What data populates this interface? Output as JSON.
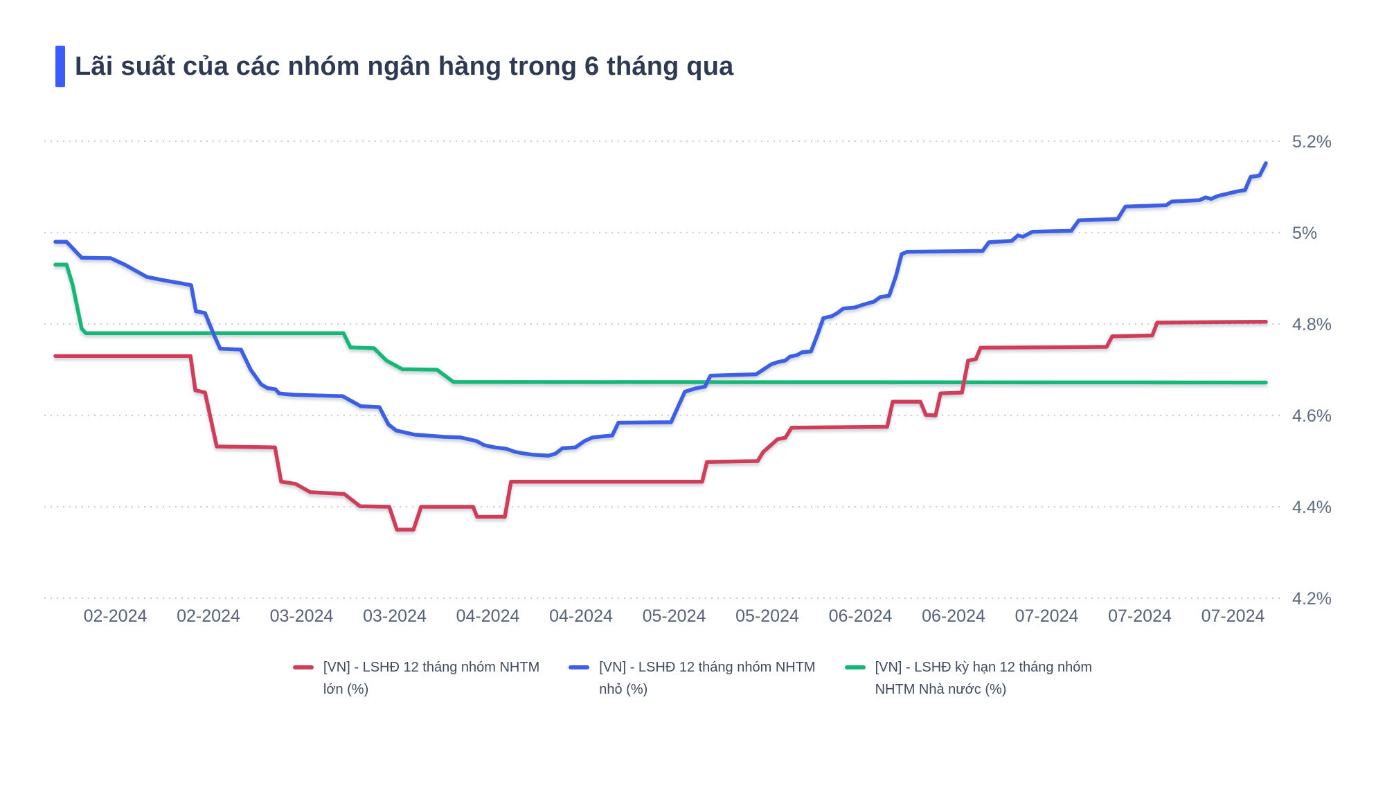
{
  "title": "Lãi suất của các nhóm ngân hàng trong 6 tháng qua",
  "accent_color": "#3b5bfd",
  "grid_color": "#c8ccd4",
  "chart_data": {
    "type": "line",
    "unit": "%",
    "title": "Lãi suất của các nhóm ngân hàng trong 6 tháng qua",
    "grid": "dotted-horizontal",
    "legend_position": "bottom",
    "y_axis": {
      "side": "right",
      "range": [
        4.2,
        5.2
      ],
      "ticks": [
        {
          "label": "5.2%",
          "value": 5.2
        },
        {
          "label": "5%",
          "value": 5.0
        },
        {
          "label": "4.8%",
          "value": 4.8
        },
        {
          "label": "4.6%",
          "value": 4.6
        },
        {
          "label": "4.4%",
          "value": 4.4
        },
        {
          "label": "4.2%",
          "value": 4.2
        }
      ]
    },
    "x_axis": {
      "labels": [
        "02-2024",
        "02-2024",
        "03-2024",
        "03-2024",
        "04-2024",
        "04-2024",
        "05-2024",
        "05-2024",
        "06-2024",
        "06-2024",
        "07-2024",
        "07-2024",
        "07-2024"
      ]
    },
    "series": [
      {
        "name": "[VN] - LSHĐ 12 tháng nhóm NHTM lớn (%)",
        "legend_lines": [
          "[VN] - LSHĐ 12 tháng nhóm NHTM",
          "lớn (%)"
        ],
        "color": "#d03d59",
        "key": "nhtm-lon",
        "points": [
          [
            0,
            4.73
          ],
          [
            0.1116,
            4.73
          ],
          [
            0.1156,
            4.655
          ],
          [
            0.1236,
            4.65
          ],
          [
            0.1333,
            4.532
          ],
          [
            0.1814,
            4.53
          ],
          [
            0.1865,
            4.455
          ],
          [
            0.1985,
            4.45
          ],
          [
            0.2105,
            4.432
          ],
          [
            0.2386,
            4.428
          ],
          [
            0.2517,
            4.401
          ],
          [
            0.2758,
            4.4
          ],
          [
            0.2821,
            4.35
          ],
          [
            0.2958,
            4.35
          ],
          [
            0.3021,
            4.4
          ],
          [
            0.345,
            4.4
          ],
          [
            0.3484,
            4.378
          ],
          [
            0.3713,
            4.378
          ],
          [
            0.3764,
            4.455
          ],
          [
            0.5343,
            4.455
          ],
          [
            0.5383,
            4.498
          ],
          [
            0.5801,
            4.5
          ],
          [
            0.5847,
            4.52
          ],
          [
            0.5967,
            4.548
          ],
          [
            0.603,
            4.551
          ],
          [
            0.6081,
            4.573
          ],
          [
            0.6871,
            4.575
          ],
          [
            0.6917,
            4.63
          ],
          [
            0.7146,
            4.63
          ],
          [
            0.7191,
            4.601
          ],
          [
            0.7271,
            4.6
          ],
          [
            0.7312,
            4.648
          ],
          [
            0.7489,
            4.65
          ],
          [
            0.754,
            4.72
          ],
          [
            0.7603,
            4.723
          ],
          [
            0.7643,
            4.748
          ],
          [
            0.8684,
            4.75
          ],
          [
            0.873,
            4.773
          ],
          [
            0.9062,
            4.775
          ],
          [
            0.9102,
            4.803
          ],
          [
            1,
            4.805
          ]
        ]
      },
      {
        "name": "[VN] - LSHĐ 12 tháng nhóm NHTM nhỏ (%)",
        "legend_lines": [
          "[VN] - LSHĐ 12 tháng nhóm NHTM",
          "nhỏ (%)"
        ],
        "color": "#3c5fe4",
        "key": "nhtm-nho",
        "points": [
          [
            0,
            4.98
          ],
          [
            0.0092,
            4.98
          ],
          [
            0.0217,
            4.945
          ],
          [
            0.0458,
            4.944
          ],
          [
            0.0572,
            4.93
          ],
          [
            0.0755,
            4.903
          ],
          [
            0.0887,
            4.896
          ],
          [
            0.1041,
            4.889
          ],
          [
            0.1121,
            4.885
          ],
          [
            0.1161,
            4.828
          ],
          [
            0.1236,
            4.824
          ],
          [
            0.131,
            4.776
          ],
          [
            0.1361,
            4.746
          ],
          [
            0.1533,
            4.744
          ],
          [
            0.1613,
            4.7
          ],
          [
            0.1699,
            4.668
          ],
          [
            0.175,
            4.66
          ],
          [
            0.1819,
            4.657
          ],
          [
            0.1848,
            4.648
          ],
          [
            0.1968,
            4.645
          ],
          [
            0.2374,
            4.642
          ],
          [
            0.2523,
            4.62
          ],
          [
            0.2677,
            4.618
          ],
          [
            0.2752,
            4.58
          ],
          [
            0.2815,
            4.567
          ],
          [
            0.2963,
            4.558
          ],
          [
            0.3061,
            4.556
          ],
          [
            0.3209,
            4.553
          ],
          [
            0.3341,
            4.552
          ],
          [
            0.3478,
            4.544
          ],
          [
            0.3541,
            4.535
          ],
          [
            0.3627,
            4.53
          ],
          [
            0.3724,
            4.527
          ],
          [
            0.3799,
            4.52
          ],
          [
            0.3884,
            4.516
          ],
          [
            0.3942,
            4.514
          ],
          [
            0.4073,
            4.512
          ],
          [
            0.413,
            4.516
          ],
          [
            0.4188,
            4.528
          ],
          [
            0.4296,
            4.53
          ],
          [
            0.4371,
            4.544
          ],
          [
            0.4439,
            4.552
          ],
          [
            0.46,
            4.556
          ],
          [
            0.4651,
            4.584
          ],
          [
            0.5086,
            4.585
          ],
          [
            0.52,
            4.652
          ],
          [
            0.5286,
            4.659
          ],
          [
            0.5366,
            4.663
          ],
          [
            0.5412,
            4.687
          ],
          [
            0.579,
            4.69
          ],
          [
            0.5915,
            4.712
          ],
          [
            0.5973,
            4.717
          ],
          [
            0.603,
            4.72
          ],
          [
            0.607,
            4.729
          ],
          [
            0.6127,
            4.732
          ],
          [
            0.6167,
            4.738
          ],
          [
            0.6242,
            4.74
          ],
          [
            0.6299,
            4.779
          ],
          [
            0.6344,
            4.813
          ],
          [
            0.6413,
            4.817
          ],
          [
            0.6459,
            4.824
          ],
          [
            0.651,
            4.834
          ],
          [
            0.6602,
            4.836
          ],
          [
            0.6682,
            4.843
          ],
          [
            0.6762,
            4.849
          ],
          [
            0.6814,
            4.859
          ],
          [
            0.6888,
            4.862
          ],
          [
            0.6945,
            4.906
          ],
          [
            0.6991,
            4.953
          ],
          [
            0.7037,
            4.958
          ],
          [
            0.766,
            4.96
          ],
          [
            0.7712,
            4.979
          ],
          [
            0.79,
            4.982
          ],
          [
            0.7952,
            4.994
          ],
          [
            0.7992,
            4.991
          ],
          [
            0.8072,
            5.002
          ],
          [
            0.8392,
            5.004
          ],
          [
            0.8455,
            5.027
          ],
          [
            0.8776,
            5.03
          ],
          [
            0.8839,
            5.057
          ],
          [
            0.9176,
            5.06
          ],
          [
            0.9222,
            5.068
          ],
          [
            0.9451,
            5.071
          ],
          [
            0.9502,
            5.077
          ],
          [
            0.9548,
            5.074
          ],
          [
            0.9599,
            5.08
          ],
          [
            0.9679,
            5.085
          ],
          [
            0.976,
            5.09
          ],
          [
            0.9828,
            5.093
          ],
          [
            0.9874,
            5.122
          ],
          [
            0.9948,
            5.125
          ],
          [
            1,
            5.152
          ]
        ]
      },
      {
        "name": "[VN] - LSHĐ kỳ hạn 12 tháng nhóm NHTM Nhà nước (%)",
        "legend_lines": [
          "[VN] - LSHĐ kỳ hạn 12 tháng nhóm",
          "NHTM Nhà nước (%)"
        ],
        "color": "#12b877",
        "key": "nhtm-nha-nuoc",
        "points": [
          [
            0,
            4.93
          ],
          [
            0.0092,
            4.93
          ],
          [
            0.0143,
            4.885
          ],
          [
            0.0217,
            4.79
          ],
          [
            0.0252,
            4.78
          ],
          [
            0.238,
            4.78
          ],
          [
            0.2437,
            4.749
          ],
          [
            0.2632,
            4.747
          ],
          [
            0.2735,
            4.72
          ],
          [
            0.2866,
            4.701
          ],
          [
            0.3152,
            4.7
          ],
          [
            0.3289,
            4.673
          ],
          [
            1,
            4.672
          ]
        ]
      }
    ]
  }
}
